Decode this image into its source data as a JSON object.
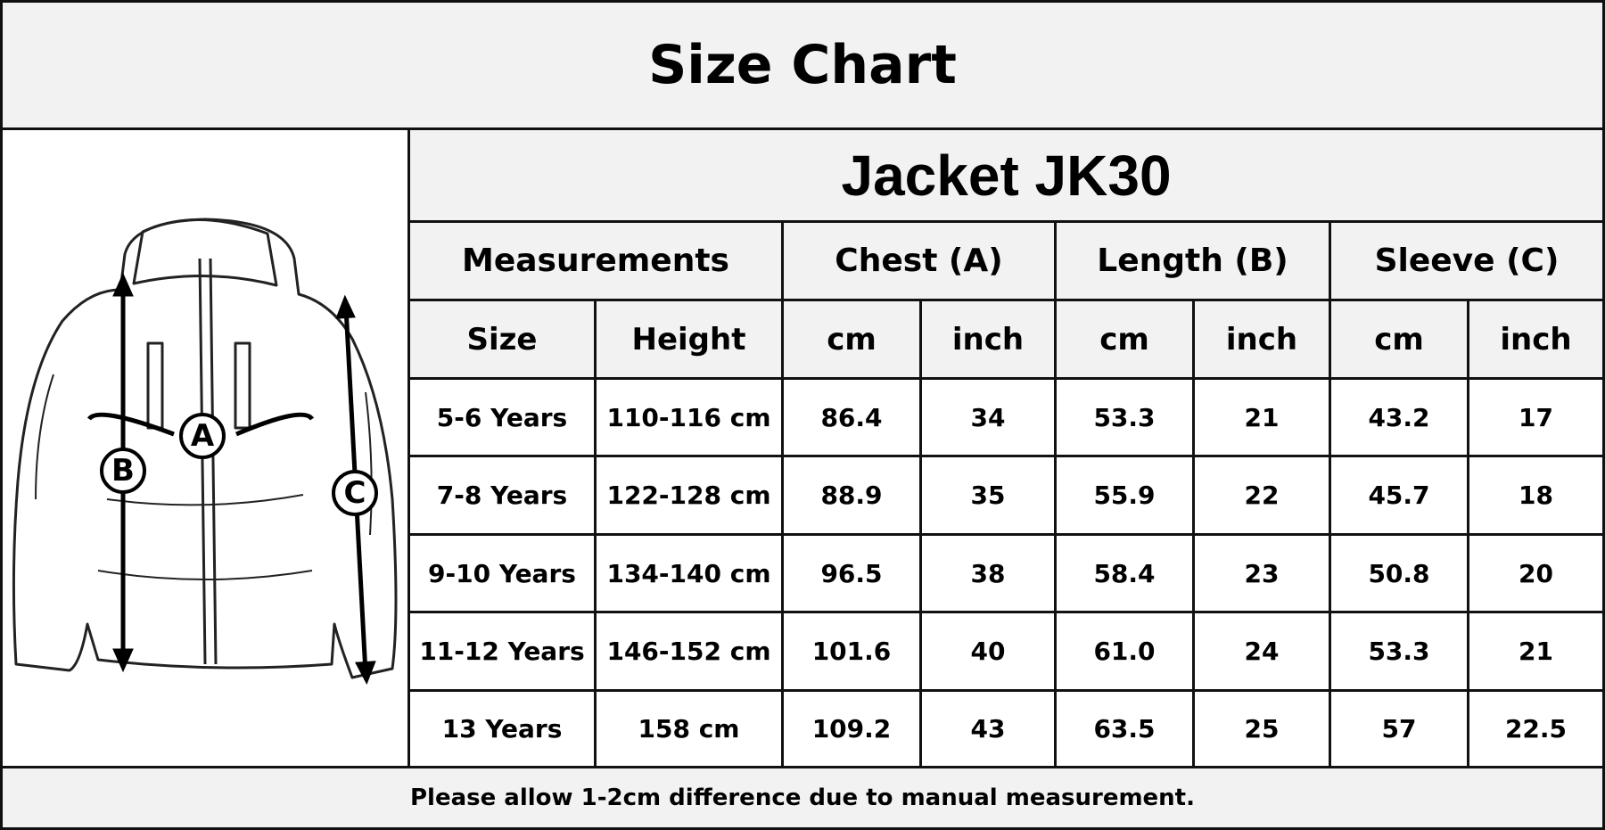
{
  "title": "Size Chart",
  "diagram": {
    "labels": [
      "A",
      "B",
      "C"
    ]
  },
  "table": {
    "title": "Jacket JK30",
    "header": [
      "Measurements",
      "Chest (A)",
      "Length (B)",
      "Sleeve (C)"
    ],
    "subheader": [
      "Size",
      "Height",
      "cm",
      "inch",
      "cm",
      "inch",
      "cm",
      "inch"
    ],
    "rows": [
      [
        "5-6 Years",
        "110-116 cm",
        "86.4",
        "34",
        "53.3",
        "21",
        "43.2",
        "17"
      ],
      [
        "7-8 Years",
        "122-128 cm",
        "88.9",
        "35",
        "55.9",
        "22",
        "45.7",
        "18"
      ],
      [
        "9-10 Years",
        "134-140 cm",
        "96.5",
        "38",
        "58.4",
        "23",
        "50.8",
        "20"
      ],
      [
        "11-12 Years",
        "146-152 cm",
        "101.6",
        "40",
        "61.0",
        "24",
        "53.3",
        "21"
      ],
      [
        "13 Years",
        "158 cm",
        "109.2",
        "43",
        "63.5",
        "25",
        "57",
        "22.5"
      ]
    ]
  },
  "footer": "Please allow 1-2cm difference due to manual measurement."
}
